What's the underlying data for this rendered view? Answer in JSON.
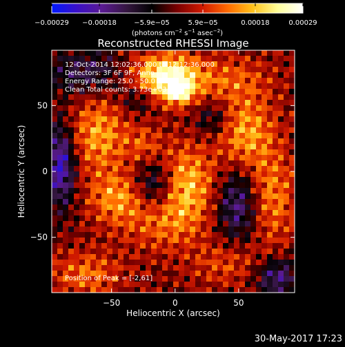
{
  "chart_data": {
    "type": "heatmap",
    "title": "Reconstructed RHESSI Image",
    "xlabel": "Heliocentric X (arcsec)",
    "ylabel": "Heliocentric Y (arcsec)",
    "xlim": [
      -97,
      94
    ],
    "ylim": [
      -92,
      92
    ],
    "x_ticks": [
      {
        "value": -50,
        "label": "−50"
      },
      {
        "value": 0,
        "label": "0"
      },
      {
        "value": 50,
        "label": "50"
      }
    ],
    "y_ticks": [
      {
        "value": -50,
        "label": "−50"
      },
      {
        "value": 0,
        "label": "0"
      },
      {
        "value": 50,
        "label": "50"
      }
    ],
    "colorbar": {
      "min": -0.00029,
      "max": 0.00029,
      "colors": [
        "#0019ff",
        "#3a10c8",
        "#5a1a92",
        "#34163f",
        "#000000",
        "#7a0000",
        "#d11a00",
        "#ff6a00",
        "#ffc21a",
        "#ffff9a",
        "#ffffff"
      ],
      "ticks": [
        {
          "value": -0.00029,
          "label": "−0.00029"
        },
        {
          "value": -0.00018,
          "label": "−0.00018"
        },
        {
          "value": -5.9e-05,
          "label": "−5.9e−05"
        },
        {
          "value": 5.9e-05,
          "label": "5.9e−05"
        },
        {
          "value": 0.00018,
          "label": "0.00018"
        },
        {
          "value": 0.00029,
          "label": "0.00029"
        }
      ],
      "label": {
        "unit_open": "(photons cm",
        "exp1": "−2",
        "mid1": " s",
        "exp2": "−1",
        "mid2": " asec",
        "exp3": "−2",
        "unit_close": ")"
      }
    },
    "grid": false,
    "annotations": {
      "time_range": "12-Oct-2014 12:02:36.000 to 12:12:36.000",
      "detectors": "Detectors: 3F 6F 9F, Anno",
      "energy": "Energy Range: 25.0 - 50.0 keV",
      "clean_counts": "Clean    Total counts: 3.73e+03",
      "peak": "Position of Peak = [-2,61]"
    },
    "sources": [
      {
        "x": -8,
        "y": 72,
        "sx": 18,
        "sy": 12,
        "amp": 0.00026
      },
      {
        "x": 3,
        "y": 61,
        "sx": 8,
        "sy": 7,
        "amp": 0.00018
      },
      {
        "x": -60,
        "y": 28,
        "sx": 16,
        "sy": 20,
        "amp": 0.00015
      },
      {
        "x": -45,
        "y": -20,
        "sx": 16,
        "sy": 14,
        "amp": 0.00014
      },
      {
        "x": 6,
        "y": -10,
        "sx": 17,
        "sy": 20,
        "amp": 0.00019
      },
      {
        "x": 55,
        "y": 30,
        "sx": 16,
        "sy": 20,
        "amp": 0.00015
      },
      {
        "x": 75,
        "y": -20,
        "sx": 14,
        "sy": 25,
        "amp": 0.00013
      },
      {
        "x": -70,
        "y": -78,
        "sx": 20,
        "sy": 12,
        "amp": 0.00011
      },
      {
        "x": 40,
        "y": 70,
        "sx": 25,
        "sy": 12,
        "amp": 9e-05
      },
      {
        "x": -25,
        "y": 20,
        "sx": 10,
        "sy": 10,
        "amp": 8e-05
      },
      {
        "x": 40,
        "y": -70,
        "sx": 20,
        "sy": 12,
        "amp": 8e-05
      },
      {
        "x": -10,
        "y": -40,
        "sx": 22,
        "sy": 15,
        "amp": 9e-05
      },
      {
        "x": -15,
        "y": -10,
        "sx": 12,
        "sy": 14,
        "amp": -0.00018
      },
      {
        "x": 50,
        "y": -25,
        "sx": 12,
        "sy": 20,
        "amp": -0.00017
      },
      {
        "x": -90,
        "y": 5,
        "sx": 8,
        "sy": 22,
        "amp": -0.00022
      },
      {
        "x": 80,
        "y": -80,
        "sx": 12,
        "sy": 10,
        "amp": -0.00016
      },
      {
        "x": -70,
        "y": 75,
        "sx": 22,
        "sy": 12,
        "amp": -0.00012
      },
      {
        "x": 30,
        "y": 40,
        "sx": 10,
        "sy": 10,
        "amp": -0.0001
      },
      {
        "x": -30,
        "y": 55,
        "sx": 10,
        "sy": 8,
        "amp": -9e-05
      }
    ]
  },
  "footer": {
    "timestamp": "30-May-2017 17:23"
  }
}
